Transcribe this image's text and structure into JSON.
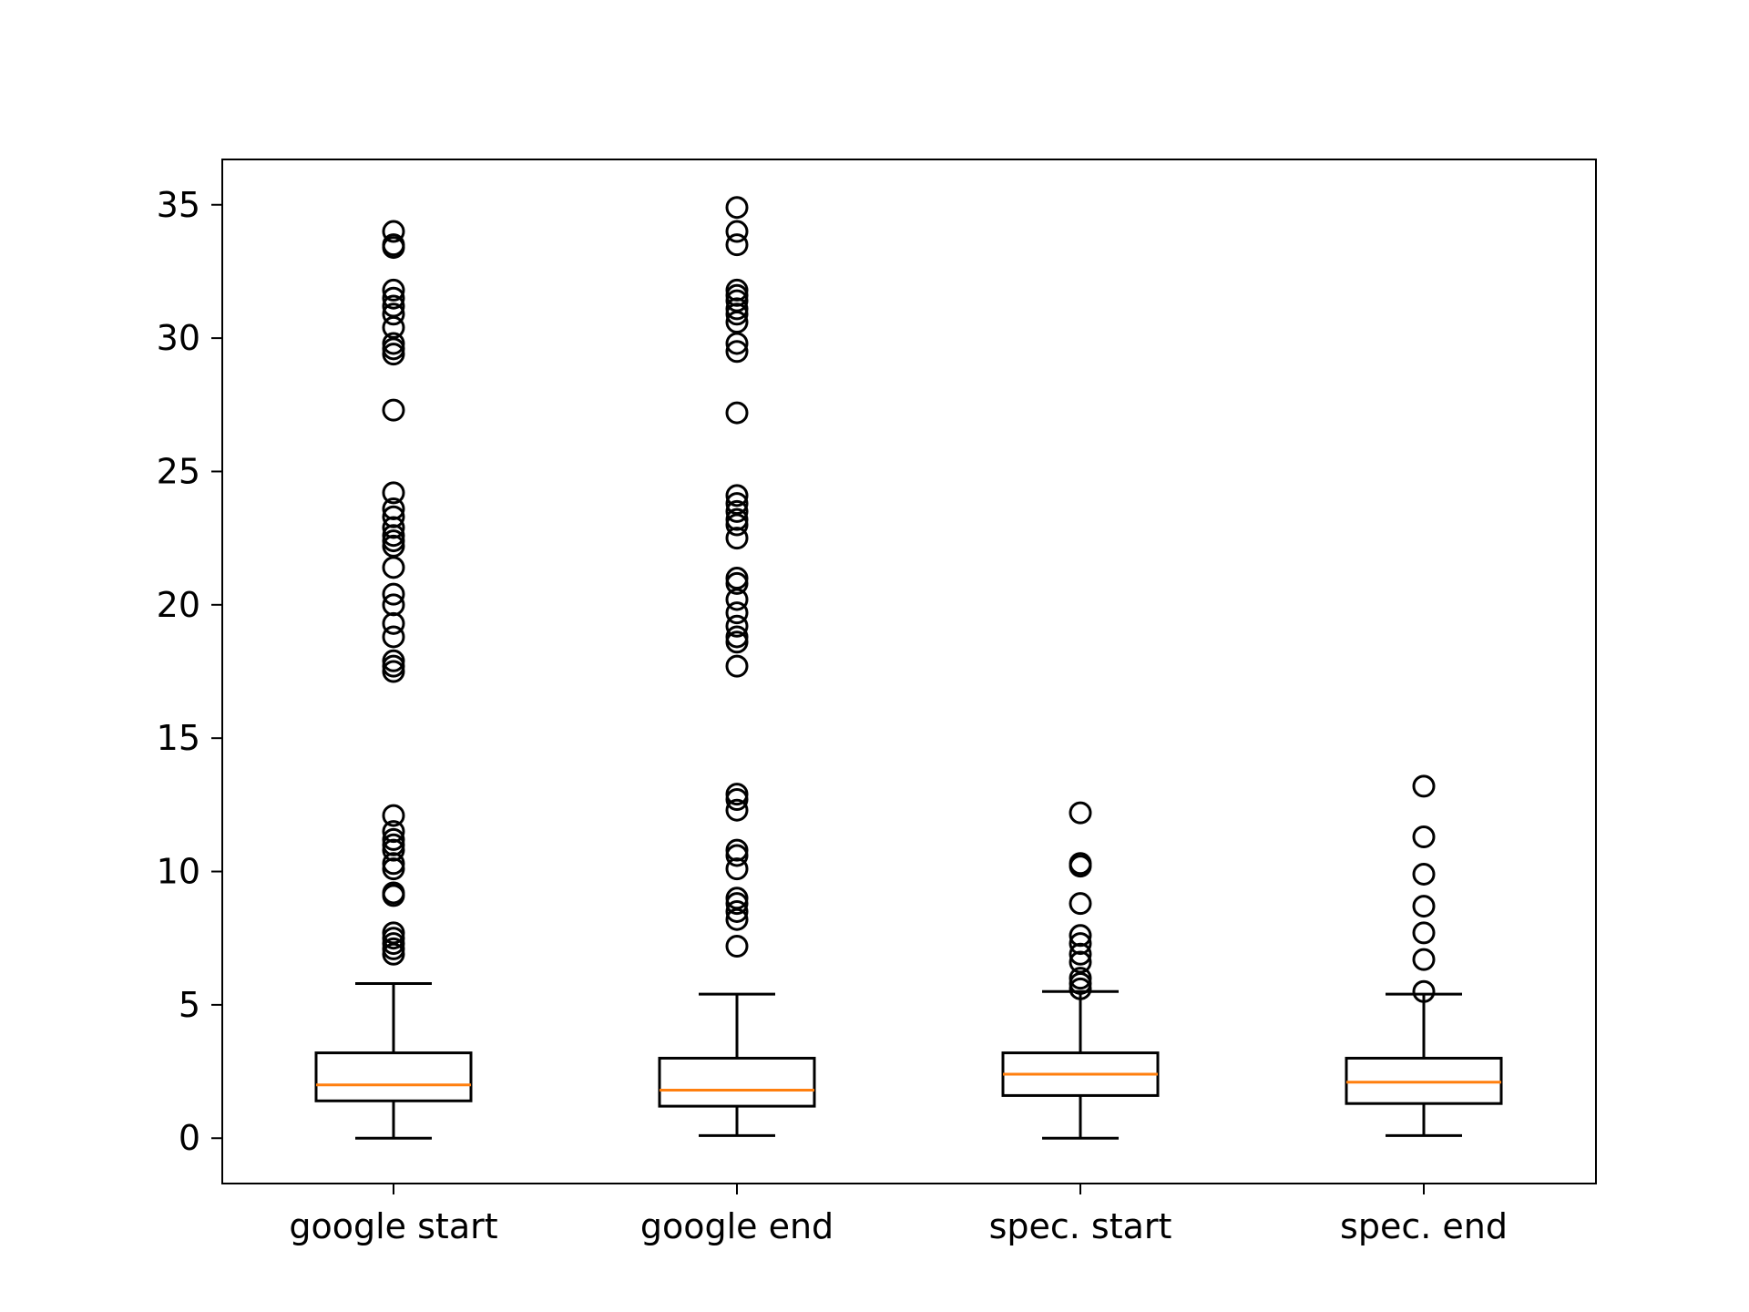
{
  "chart_data": {
    "type": "box",
    "categories": [
      "google start",
      "google end",
      "spec. start",
      "spec. end"
    ],
    "ylim": [
      -1.7,
      36.7
    ],
    "yticks": [
      0,
      5,
      10,
      15,
      20,
      25,
      30,
      35
    ],
    "grid": false,
    "legend": "none",
    "colors": {
      "box": "#000000",
      "median": "#ff7f0e",
      "outlier": "#000000",
      "background": "#ffffff"
    },
    "boxes": [
      {
        "name": "google start",
        "whisker_low": 0.0,
        "q1": 1.4,
        "median": 2.0,
        "q3": 3.2,
        "whisker_high": 5.8,
        "outliers": [
          6.9,
          7.1,
          7.3,
          7.5,
          7.7,
          9.1,
          9.2,
          10.1,
          10.3,
          10.8,
          11.0,
          11.2,
          11.5,
          12.1,
          17.5,
          17.7,
          17.9,
          18.8,
          19.3,
          20.0,
          20.4,
          21.4,
          22.2,
          22.4,
          22.6,
          22.9,
          23.3,
          23.6,
          24.2,
          27.3,
          29.4,
          29.6,
          29.8,
          30.4,
          30.9,
          31.2,
          31.5,
          31.8,
          33.4,
          33.5,
          34.0
        ]
      },
      {
        "name": "google end",
        "whisker_low": 0.1,
        "q1": 1.2,
        "median": 1.8,
        "q3": 3.0,
        "whisker_high": 5.4,
        "outliers": [
          7.2,
          8.2,
          8.5,
          8.8,
          9.0,
          10.1,
          10.6,
          10.8,
          12.3,
          12.7,
          12.9,
          17.7,
          18.6,
          18.8,
          19.2,
          19.7,
          20.2,
          20.8,
          21.0,
          22.5,
          23.0,
          23.2,
          23.5,
          23.8,
          24.1,
          27.2,
          29.5,
          29.8,
          30.6,
          30.9,
          31.1,
          31.4,
          31.6,
          31.8,
          33.5,
          34.0,
          34.9
        ]
      },
      {
        "name": "spec. start",
        "whisker_low": 0.0,
        "q1": 1.6,
        "median": 2.4,
        "q3": 3.2,
        "whisker_high": 5.5,
        "outliers": [
          5.6,
          5.8,
          6.0,
          6.6,
          6.9,
          7.3,
          7.6,
          8.8,
          10.2,
          10.3,
          12.2
        ]
      },
      {
        "name": "spec. end",
        "whisker_low": 0.1,
        "q1": 1.3,
        "median": 2.1,
        "q3": 3.0,
        "whisker_high": 5.4,
        "outliers": [
          5.5,
          6.7,
          7.7,
          8.7,
          9.9,
          11.3,
          13.2
        ]
      }
    ]
  }
}
